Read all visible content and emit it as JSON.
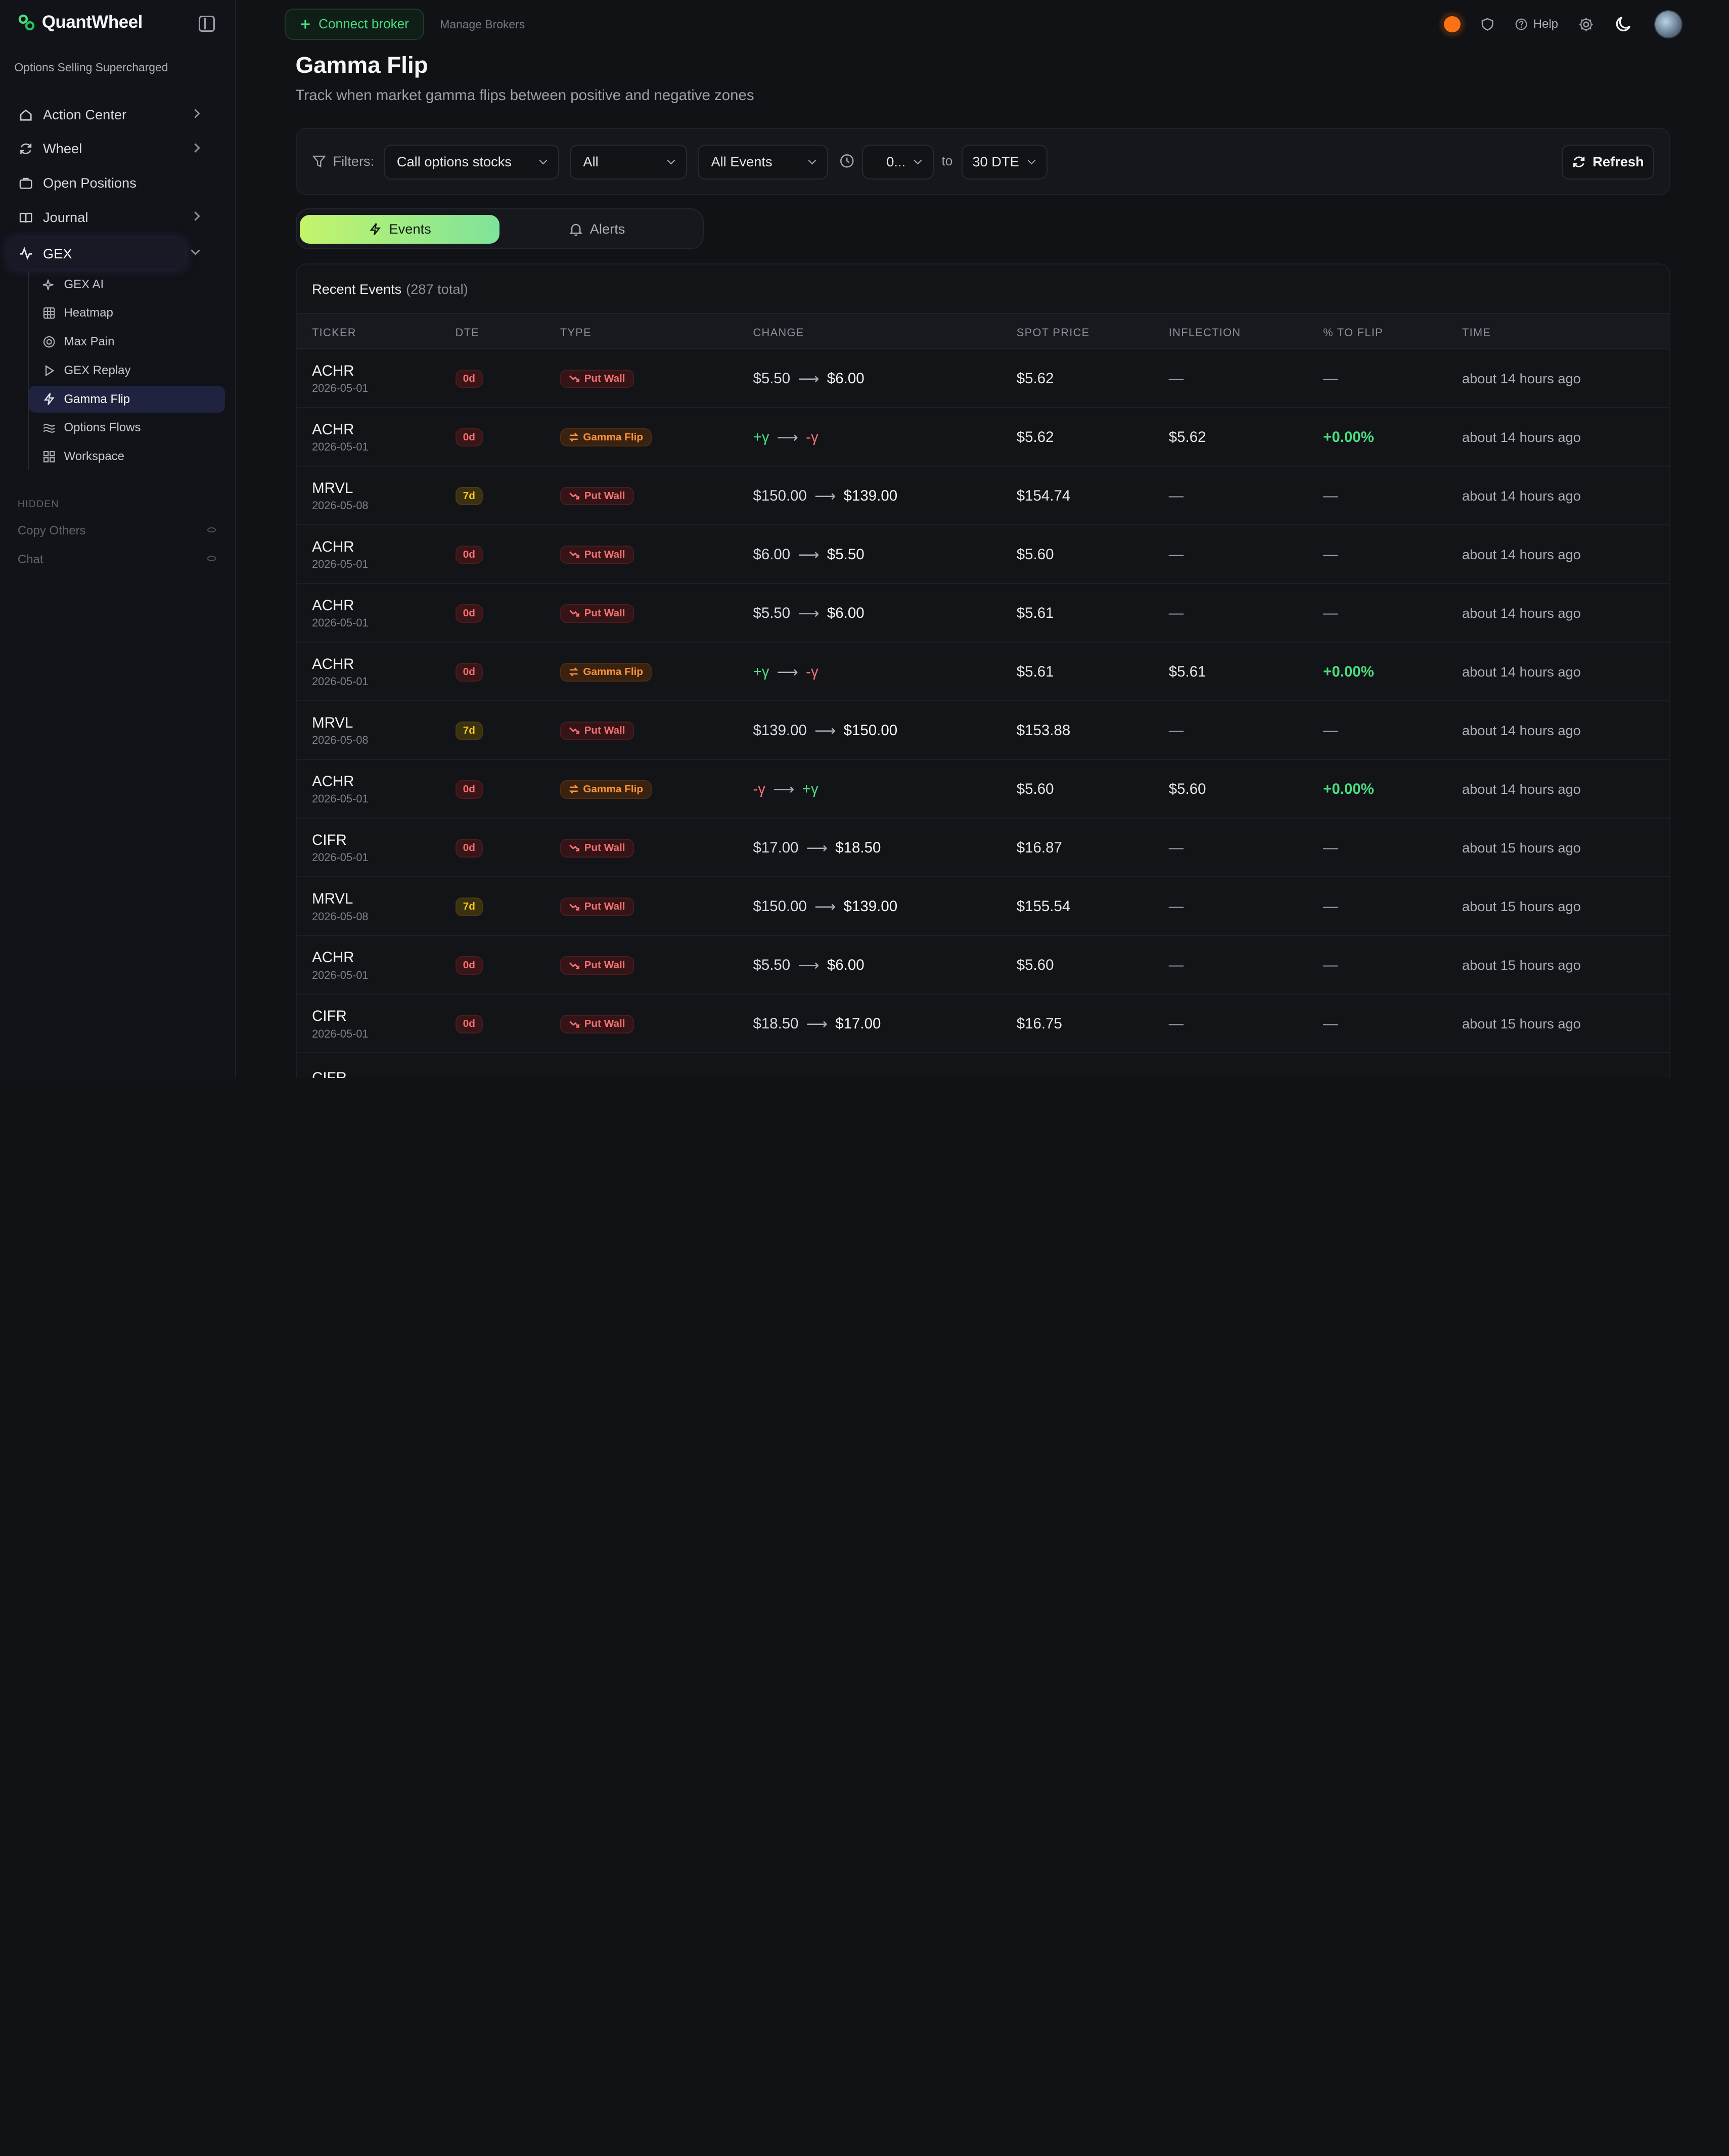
{
  "app": {
    "name": "QuantWheel",
    "tagline": "Options Selling Supercharged"
  },
  "sidebar": {
    "items": [
      {
        "label": "Action Center",
        "icon": "home-icon"
      },
      {
        "label": "Wheel",
        "icon": "refresh-icon"
      },
      {
        "label": "Open Positions",
        "icon": "briefcase-icon"
      },
      {
        "label": "Journal",
        "icon": "book-icon"
      },
      {
        "label": "GEX",
        "icon": "activity-icon"
      }
    ],
    "sub_items": [
      {
        "label": "GEX AI",
        "icon": "sparkles-icon"
      },
      {
        "label": "Heatmap",
        "icon": "grid-icon"
      },
      {
        "label": "Max Pain",
        "icon": "target-icon"
      },
      {
        "label": "GEX Replay",
        "icon": "play-icon"
      },
      {
        "label": "Gamma Flip",
        "icon": "zap-icon"
      },
      {
        "label": "Options Flows",
        "icon": "waves-icon"
      },
      {
        "label": "Workspace",
        "icon": "layout-icon"
      }
    ],
    "hidden_label": "HIDDEN",
    "hidden_items": [
      "Copy Others",
      "Chat"
    ]
  },
  "topbar": {
    "connect": "Connect broker",
    "manage": "Manage Brokers",
    "help": "Help"
  },
  "header": {
    "title": "Gamma Flip",
    "subtitle": "Track when market gamma flips between positive and negative zones"
  },
  "filters": {
    "label": "Filters:",
    "stocks": "Call options stocks",
    "scope": "All",
    "events": "All Events",
    "dte_from": "0...",
    "to": "to",
    "dte_to": "30 DTE",
    "refresh": "Refresh"
  },
  "tabs": {
    "events": "Events",
    "alerts": "Alerts"
  },
  "table": {
    "title": "Recent Events",
    "count": "(287 total)",
    "columns": [
      "TICKER",
      "DTE",
      "TYPE",
      "CHANGE",
      "SPOT PRICE",
      "INFLECTION",
      "% TO FLIP",
      "TIME"
    ],
    "rows": [
      {
        "ticker": "ACHR",
        "date": "2026-05-01",
        "dte": "0d",
        "type": "Put Wall",
        "from": "$5.50",
        "to": "$6.00",
        "spot": "$5.62",
        "inflection": "—",
        "pct": "—",
        "time": "about 14 hours ago"
      },
      {
        "ticker": "ACHR",
        "date": "2026-05-01",
        "dte": "0d",
        "type": "Gamma Flip",
        "from": "+γ",
        "to": "-γ",
        "spot": "$5.62",
        "inflection": "$5.62",
        "pct": "+0.00%",
        "time": "about 14 hours ago"
      },
      {
        "ticker": "MRVL",
        "date": "2026-05-08",
        "dte": "7d",
        "type": "Put Wall",
        "from": "$150.00",
        "to": "$139.00",
        "spot": "$154.74",
        "inflection": "—",
        "pct": "—",
        "time": "about 14 hours ago"
      },
      {
        "ticker": "ACHR",
        "date": "2026-05-01",
        "dte": "0d",
        "type": "Put Wall",
        "from": "$6.00",
        "to": "$5.50",
        "spot": "$5.60",
        "inflection": "—",
        "pct": "—",
        "time": "about 14 hours ago"
      },
      {
        "ticker": "ACHR",
        "date": "2026-05-01",
        "dte": "0d",
        "type": "Put Wall",
        "from": "$5.50",
        "to": "$6.00",
        "spot": "$5.61",
        "inflection": "—",
        "pct": "—",
        "time": "about 14 hours ago"
      },
      {
        "ticker": "ACHR",
        "date": "2026-05-01",
        "dte": "0d",
        "type": "Gamma Flip",
        "from": "+γ",
        "to": "-γ",
        "spot": "$5.61",
        "inflection": "$5.61",
        "pct": "+0.00%",
        "time": "about 14 hours ago"
      },
      {
        "ticker": "MRVL",
        "date": "2026-05-08",
        "dte": "7d",
        "type": "Put Wall",
        "from": "$139.00",
        "to": "$150.00",
        "spot": "$153.88",
        "inflection": "—",
        "pct": "—",
        "time": "about 14 hours ago"
      },
      {
        "ticker": "ACHR",
        "date": "2026-05-01",
        "dte": "0d",
        "type": "Gamma Flip",
        "from": "-γ",
        "to": "+γ",
        "spot": "$5.60",
        "inflection": "$5.60",
        "pct": "+0.00%",
        "time": "about 14 hours ago"
      },
      {
        "ticker": "CIFR",
        "date": "2026-05-01",
        "dte": "0d",
        "type": "Put Wall",
        "from": "$17.00",
        "to": "$18.50",
        "spot": "$16.87",
        "inflection": "—",
        "pct": "—",
        "time": "about 15 hours ago"
      },
      {
        "ticker": "MRVL",
        "date": "2026-05-08",
        "dte": "7d",
        "type": "Put Wall",
        "from": "$150.00",
        "to": "$139.00",
        "spot": "$155.54",
        "inflection": "—",
        "pct": "—",
        "time": "about 15 hours ago"
      },
      {
        "ticker": "ACHR",
        "date": "2026-05-01",
        "dte": "0d",
        "type": "Put Wall",
        "from": "$5.50",
        "to": "$6.00",
        "spot": "$5.60",
        "inflection": "—",
        "pct": "—",
        "time": "about 15 hours ago"
      },
      {
        "ticker": "CIFR",
        "date": "2026-05-01",
        "dte": "0d",
        "type": "Put Wall",
        "from": "$18.50",
        "to": "$17.00",
        "spot": "$16.75",
        "inflection": "—",
        "pct": "—",
        "time": "about 15 hours ago"
      }
    ],
    "partial_ticker": "CIFR"
  }
}
